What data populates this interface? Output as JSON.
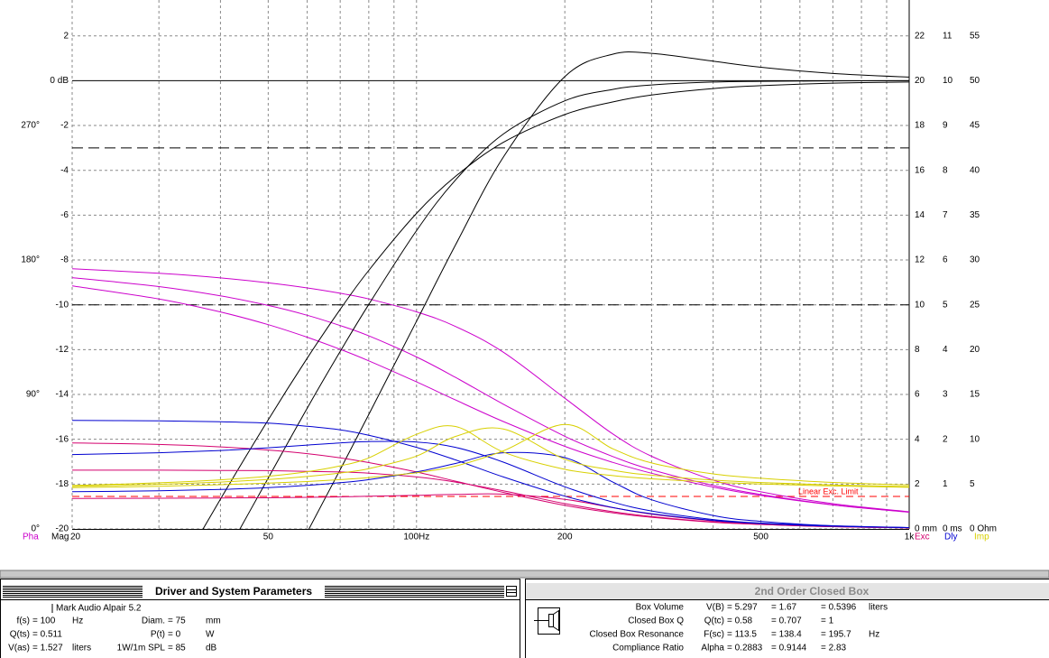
{
  "chart_data": {
    "type": "line",
    "xscale": "log",
    "xlim": [
      20,
      1000
    ],
    "x": [
      20,
      30,
      40,
      50,
      60,
      70,
      80,
      100,
      120,
      150,
      200,
      250,
      300,
      400,
      500,
      700,
      1000
    ],
    "xticks": [
      20,
      50,
      {
        "value": 100,
        "label": "100Hz"
      },
      200,
      500,
      {
        "value": 1000,
        "label": "1k"
      }
    ],
    "xminor": [
      30,
      40,
      60,
      70,
      80,
      90,
      300,
      400,
      600,
      700,
      800,
      900
    ],
    "ylim": [
      -20,
      3.6
    ],
    "yticks": [
      -20,
      -18,
      -16,
      -14,
      -12,
      -10,
      -8,
      -6,
      -4,
      -2,
      {
        "value": 0,
        "label": "0 dB"
      },
      2
    ],
    "phase_lim": [
      0,
      354
    ],
    "phase_ticks": [
      {
        "value": 0,
        "label": "0°"
      },
      {
        "value": 90,
        "label": "90°"
      },
      {
        "value": 180,
        "label": "180°"
      },
      {
        "value": 270,
        "label": "270°"
      }
    ],
    "exc_lim": [
      0,
      23.6
    ],
    "exc_ticks": [
      {
        "value": 0,
        "label": "0 mm"
      },
      2,
      4,
      6,
      8,
      10,
      12,
      14,
      16,
      18,
      20,
      22
    ],
    "dly_lim": [
      0,
      11.8
    ],
    "dly_ticks": [
      {
        "value": 0,
        "label": "0 ms"
      },
      1,
      2,
      3,
      4,
      5,
      6,
      7,
      8,
      9,
      10,
      11
    ],
    "imp_lim": [
      0,
      59
    ],
    "imp_ticks": [
      {
        "value": 0,
        "label": "0 Ohm"
      },
      5,
      10,
      15,
      20,
      25,
      30,
      35,
      40,
      45,
      50,
      55
    ],
    "grid": true,
    "zero_line": true,
    "hlines": [
      -3,
      -10
    ],
    "exc_limit": 1.45,
    "exc_limit_label": "Linear Exc. Limit",
    "exc_limit_color": "#ff0000",
    "series": [
      {
        "name": "Pha",
        "color": "#cc00cc",
        "axis": "phase",
        "curves": [
          [
            162.6,
            153.9,
            145.2,
            136.7,
            128.3,
            120.2,
            112.5,
            98.4,
            86.3,
            71.9,
            55.3,
            44.6,
            37.3,
            28.0,
            22.4,
            16.0,
            11.2
          ],
          [
            168.2,
            162.2,
            156.0,
            149.6,
            143.0,
            136.1,
            129.2,
            115.1,
            101.4,
            83.5,
            62.0,
            48.5,
            39.6,
            29.1,
            23.0,
            16.2,
            11.3
          ],
          [
            174.1,
            171.1,
            168.0,
            164.7,
            161.3,
            157.7,
            153.9,
            145.3,
            135.5,
            118.3,
            87.5,
            63.7,
            48.6,
            32.7,
            24.8,
            16.9,
            11.5
          ]
        ]
      },
      {
        "name": "Mag",
        "color": "#000000",
        "axis": "y",
        "curves": [
          [
            null,
            -23.4,
            -18.67,
            -15.13,
            -12.38,
            -10.2,
            -8.46,
            -5.92,
            -4.27,
            -2.75,
            -1.51,
            -0.95,
            -0.64,
            -0.35,
            -0.22,
            -0.11,
            -0.06
          ],
          [
            null,
            null,
            -21.57,
            -17.73,
            -14.61,
            -12.08,
            -9.98,
            -6.69,
            -4.43,
            -2.38,
            -0.9,
            -0.39,
            -0.19,
            -0.06,
            -0.03,
            -0.01,
            0
          ],
          [
            null,
            null,
            null,
            -23.43,
            -20.15,
            -17.35,
            -14.89,
            -10.73,
            -7.33,
            -3.41,
            0.18,
            1.18,
            1.22,
            0.87,
            0.6,
            0.32,
            0.16
          ]
        ]
      },
      {
        "name": "Exc",
        "color": "#d4006e",
        "axis": "exc",
        "curves": [
          [
            3.84,
            3.77,
            3.66,
            3.52,
            3.36,
            3.17,
            2.96,
            2.54,
            2.13,
            1.63,
            1.05,
            0.72,
            0.52,
            0.3,
            0.2,
            0.1,
            0.05
          ],
          [
            2.62,
            2.62,
            2.61,
            2.6,
            2.57,
            2.54,
            2.49,
            2.32,
            2.09,
            1.7,
            1.13,
            0.77,
            0.55,
            0.31,
            0.2,
            0.1,
            0.05
          ],
          [
            1.36,
            1.37,
            1.38,
            1.39,
            1.41,
            1.43,
            1.46,
            1.5,
            1.54,
            1.55,
            1.32,
            0.95,
            0.66,
            0.36,
            0.22,
            0.11,
            0.05
          ]
        ]
      },
      {
        "name": "Dly",
        "color": "#0000d0",
        "axis": "dly",
        "curves": [
          [
            2.42,
            2.41,
            2.39,
            2.36,
            2.29,
            2.21,
            2.09,
            1.82,
            1.54,
            1.16,
            0.73,
            0.48,
            0.34,
            0.19,
            0.12,
            0.06,
            0.03
          ],
          [
            1.66,
            1.7,
            1.75,
            1.81,
            1.87,
            1.92,
            1.95,
            1.94,
            1.82,
            1.49,
            0.94,
            0.6,
            0.4,
            0.21,
            0.13,
            0.07,
            0.03
          ],
          [
            0.83,
            0.85,
            0.88,
            0.92,
            0.97,
            1.03,
            1.1,
            1.27,
            1.46,
            1.7,
            1.59,
            1.05,
            0.65,
            0.3,
            0.17,
            0.07,
            0.03
          ]
        ]
      },
      {
        "name": "Imp",
        "color": "#d8d000",
        "axis": "imp",
        "curves": [
          [
            4.84,
            5.14,
            5.48,
            5.88,
            6.38,
            7.04,
            7.92,
            10.55,
            11.43,
            8.58,
            6.65,
            5.95,
            5.59,
            5.21,
            5.01,
            4.79,
            4.64
          ],
          [
            4.74,
            4.97,
            5.23,
            5.51,
            5.85,
            6.24,
            6.73,
            8.13,
            10.32,
            11.16,
            7.77,
            6.55,
            5.99,
            5.45,
            5.18,
            4.91,
            4.72
          ],
          [
            4.61,
            4.76,
            4.93,
            5.1,
            5.29,
            5.5,
            5.73,
            6.27,
            7.01,
            8.71,
            11.66,
            8.95,
            7.36,
            6.14,
            5.65,
            5.19,
            4.9
          ]
        ]
      }
    ]
  },
  "driver_panel": {
    "title": "Driver and System Parameters",
    "driver_name": "Mark Audio  Alpair 5.2",
    "rows": [
      [
        "f(s)",
        "= 100",
        "Hz",
        "Diam.",
        "= 75",
        "mm"
      ],
      [
        "Q(ts)",
        "= 0.511",
        null,
        "P(t)",
        "= 0",
        "W"
      ],
      [
        "V(as)",
        "= 1.527",
        "liters",
        "1W/1m SPL",
        "= 85",
        "dB"
      ]
    ]
  },
  "box_panel": {
    "title": "2nd Order Closed Box",
    "rows": [
      [
        "Box Volume",
        "V(B)",
        "= 5.297",
        "= 1.67",
        "= 0.5396",
        "liters"
      ],
      [
        "Closed Box Q",
        "Q(tc)",
        "= 0.58",
        "= 0.707",
        "= 1",
        null
      ],
      [
        "Closed Box Resonance",
        "F(sc)",
        "= 113.5",
        "= 138.4",
        "= 195.7",
        "Hz"
      ],
      [
        "Compliance Ratio",
        "Alpha",
        "= 0.2883",
        "= 0.9144",
        "= 2.83",
        null
      ]
    ]
  }
}
